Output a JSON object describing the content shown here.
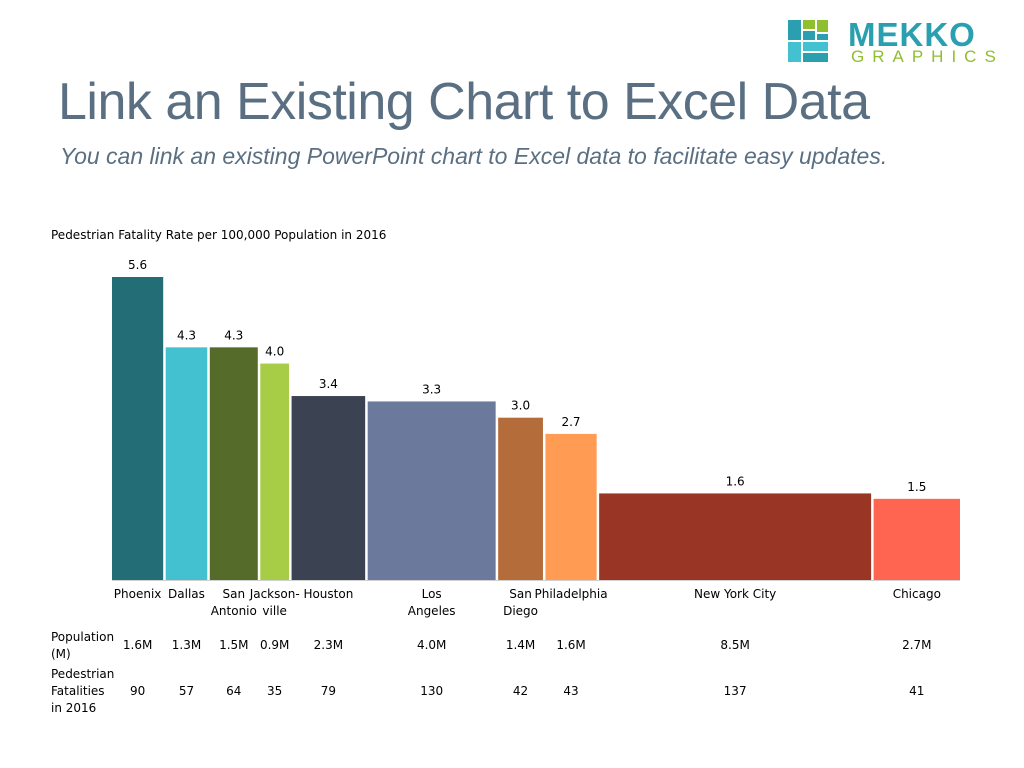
{
  "title": "Link an Existing Chart to Excel Data",
  "subtitle": "You can link an existing PowerPoint chart to Excel data to facilitate easy updates.",
  "logo": {
    "word": "MEKKO",
    "sub": "GRAPHICS"
  },
  "row_labels": {
    "population": "Population (M)",
    "fatalities": "Pedestrian Fatalities in 2016"
  },
  "chart_data": {
    "type": "bar",
    "variable_width": true,
    "title": "Pedestrian Fatality Rate per 100,000 Population in 2016",
    "xlabel": "",
    "ylabel": "",
    "ylim": [
      0,
      5.6
    ],
    "width_measure": "Population (M)",
    "categories": [
      "Phoenix",
      "Dallas",
      "San Antonio",
      "Jackson-ville",
      "Houston",
      "Los Angeles",
      "San Diego",
      "Philadelphia",
      "New York City",
      "Chicago"
    ],
    "values": [
      5.6,
      4.3,
      4.3,
      4.0,
      3.4,
      3.3,
      3.0,
      2.7,
      1.6,
      1.5
    ],
    "value_labels": [
      "5.6",
      "4.3",
      "4.3",
      "4.0",
      "3.4",
      "3.3",
      "3.0",
      "2.7",
      "1.6",
      "1.5"
    ],
    "population_labels": [
      "1.6M",
      "1.3M",
      "1.5M",
      "0.9M",
      "2.3M",
      "4.0M",
      "1.4M",
      "1.6M",
      "8.5M",
      "2.7M"
    ],
    "population": [
      1.6,
      1.3,
      1.5,
      0.9,
      2.3,
      4.0,
      1.4,
      1.6,
      8.5,
      2.7
    ],
    "fatalities": [
      90,
      57,
      64,
      35,
      79,
      130,
      42,
      43,
      137,
      41
    ],
    "colors": [
      "#236e76",
      "#43c1d1",
      "#556b2a",
      "#a6cd45",
      "#3b4252",
      "#6b7a9c",
      "#b46c3a",
      "#ff9b52",
      "#993525",
      "#ff6550"
    ]
  }
}
